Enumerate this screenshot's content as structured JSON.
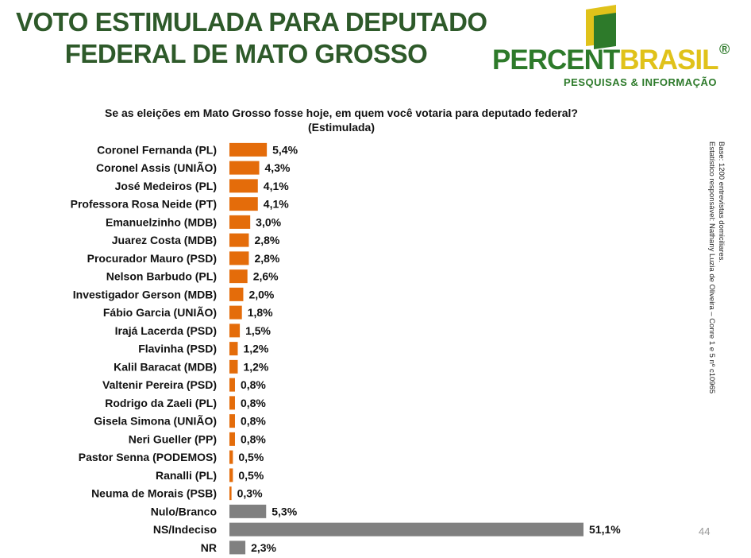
{
  "header": {
    "title_line1": "VOTO ESTIMULADA PARA DEPUTADO",
    "title_line2": "FEDERAL DE MATO GROSSO"
  },
  "logo": {
    "name_part1": "PERCENT",
    "name_part2": "BRASIL",
    "registered": "®",
    "tagline": "PESQUISAS & INFORMAÇÃO"
  },
  "question": {
    "line1": "Se as eleições em Mato Grosso fosse hoje, em quem você votaria para deputado federal?",
    "line2": "(Estimulada)"
  },
  "side_note": {
    "line1": "Base: 1200 entrevistas domiciliares.",
    "line2": "Estatístico responsável: Nathany Luzia de Oliveira – Conre 1 e 5 nº c10965"
  },
  "page_number": "44",
  "colors": {
    "candidate": "#e46c0a",
    "other": "#808080",
    "title": "#2e5a2a"
  },
  "chart_data": {
    "type": "bar",
    "orientation": "horizontal",
    "categories": [
      "Coronel Fernanda (PL)",
      "Coronel Assis (UNIÃO)",
      "José Medeiros (PL)",
      "Professora Rosa Neide (PT)",
      "Emanuelzinho (MDB)",
      "Juarez Costa (MDB)",
      "Procurador Mauro (PSD)",
      "Nelson Barbudo (PL)",
      "Investigador Gerson (MDB)",
      "Fábio Garcia (UNIÃO)",
      "Irajá Lacerda (PSD)",
      "Flavinha (PSD)",
      "Kalil Baracat (MDB)",
      "Valtenir Pereira (PSD)",
      "Rodrigo da Zaeli (PL)",
      "Gisela Simona (UNIÃO)",
      "Neri Gueller (PP)",
      "Pastor Senna (PODEMOS)",
      "Ranalli (PL)",
      "Neuma de Morais (PSB)",
      "Nulo/Branco",
      "NS/Indeciso",
      "NR"
    ],
    "values": [
      5.4,
      4.3,
      4.1,
      4.1,
      3.0,
      2.8,
      2.8,
      2.6,
      2.0,
      1.8,
      1.5,
      1.2,
      1.2,
      0.8,
      0.8,
      0.8,
      0.8,
      0.5,
      0.5,
      0.3,
      5.3,
      51.1,
      2.3
    ],
    "value_labels": [
      "5,4%",
      "4,3%",
      "4,1%",
      "4,1%",
      "3,0%",
      "2,8%",
      "2,8%",
      "2,6%",
      "2,0%",
      "1,8%",
      "1,5%",
      "1,2%",
      "1,2%",
      "0,8%",
      "0,8%",
      "0,8%",
      "0,8%",
      "0,5%",
      "0,5%",
      "0,3%",
      "5,3%",
      "51,1%",
      "2,3%"
    ],
    "groups": [
      "candidate",
      "candidate",
      "candidate",
      "candidate",
      "candidate",
      "candidate",
      "candidate",
      "candidate",
      "candidate",
      "candidate",
      "candidate",
      "candidate",
      "candidate",
      "candidate",
      "candidate",
      "candidate",
      "candidate",
      "candidate",
      "candidate",
      "candidate",
      "other",
      "other",
      "other"
    ],
    "xlim": [
      0,
      51.1
    ],
    "title": "",
    "xlabel": "",
    "ylabel": "",
    "grid": false,
    "legend": "none"
  }
}
